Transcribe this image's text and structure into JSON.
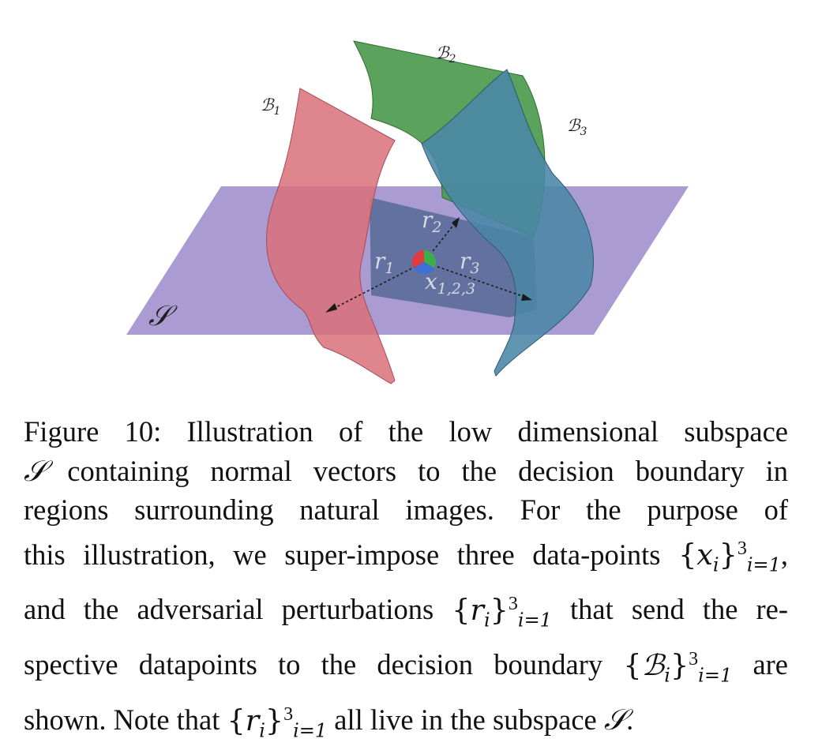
{
  "figure": {
    "labels": {
      "plane": "𝒮",
      "boundary1": "ℬ",
      "boundary1_sub": "1",
      "boundary2": "ℬ",
      "boundary2_sub": "2",
      "boundary3": "ℬ",
      "boundary3_sub": "3",
      "r1": "r",
      "r1_sub": "1",
      "r2": "r",
      "r2_sub": "2",
      "r3": "r",
      "r3_sub": "3",
      "point": "x",
      "point_sub": "1,2,3"
    },
    "colors": {
      "plane": "#8e7bc4",
      "boundary1": "#d9707a",
      "boundary2": "#4d9a4e",
      "boundary3": "#4a86a6",
      "point_red": "#e03c3c",
      "point_green": "#3cae4a",
      "point_blue": "#3c6fd8"
    }
  },
  "caption": {
    "line1": "Figure 10:  Illustration of the low dimensional subspace",
    "line2_sym": "𝒮",
    "line2_text": " containing normal vectors to the decision boundary in",
    "line3": "regions surrounding natural images.  For the purpose of",
    "line4_text": "this illustration, we super-impose three data-points ",
    "line5_pre": "and the adversarial perturbations ",
    "line5_post": " that send the re-",
    "line6_pre": "spective datapoints to the decision boundary ",
    "line6_post": " are",
    "line7_pre": "shown. Note that ",
    "line7_mid": " all live in the subspace ",
    "line7_sym": "𝒮",
    "line7_end": ".",
    "set_x": "x",
    "set_r": "r",
    "set_b": "ℬ",
    "index": "i",
    "index_range": "i=1",
    "upper": "3"
  }
}
